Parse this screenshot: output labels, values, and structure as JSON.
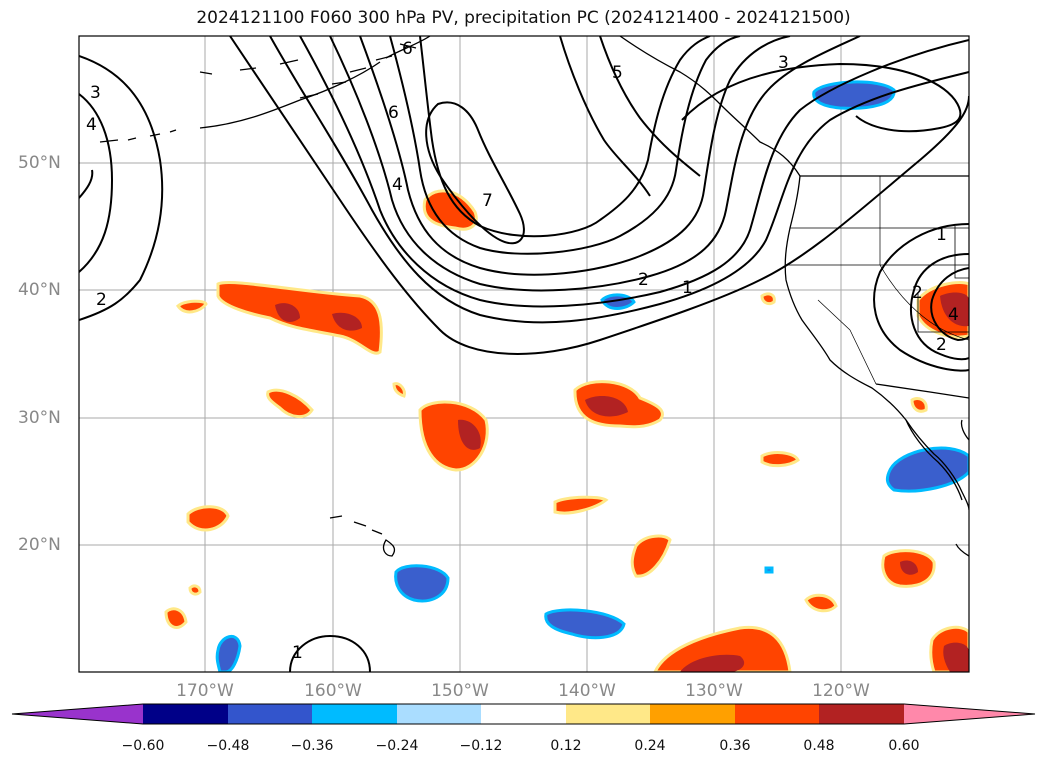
{
  "title": "2024121100 F060 300 hPa PV, precipitation PC (2024121400 - 2024121500)",
  "lat_labels": [
    "50°N",
    "40°N",
    "30°N",
    "20°N"
  ],
  "lon_labels": [
    "170°W",
    "160°W",
    "150°W",
    "140°W",
    "130°W",
    "120°W"
  ],
  "contour_labels": [
    "3",
    "4",
    "2",
    "6",
    "4",
    "6",
    "7",
    "5",
    "3",
    "2",
    "1",
    "1",
    "2",
    "2",
    "4",
    "1"
  ],
  "colorbar": {
    "colors": [
      "#9933cc",
      "#000088",
      "#3355cc",
      "#00bbff",
      "#aaddff",
      "#ffffff",
      "#ffe888",
      "#ffa000",
      "#ff4400",
      "#b22222",
      "#ff88aa"
    ],
    "ticks": [
      "−0.60",
      "−0.48",
      "−0.36",
      "−0.24",
      "−0.12",
      "0.12",
      "0.24",
      "0.36",
      "0.48",
      "0.60"
    ],
    "values": [
      -0.6,
      -0.48,
      -0.36,
      -0.24,
      -0.12,
      0.12,
      0.24,
      0.36,
      0.48,
      0.6
    ]
  },
  "colors": {
    "positive_mid": "#ff4400",
    "positive_high": "#b22222",
    "positive_edge": "#ffe888",
    "negative_mid": "#3a5fcd",
    "negative_edge": "#00bbff",
    "grid": "#aaaaaa",
    "contour": "#000000",
    "axis_label": "#888888"
  }
}
